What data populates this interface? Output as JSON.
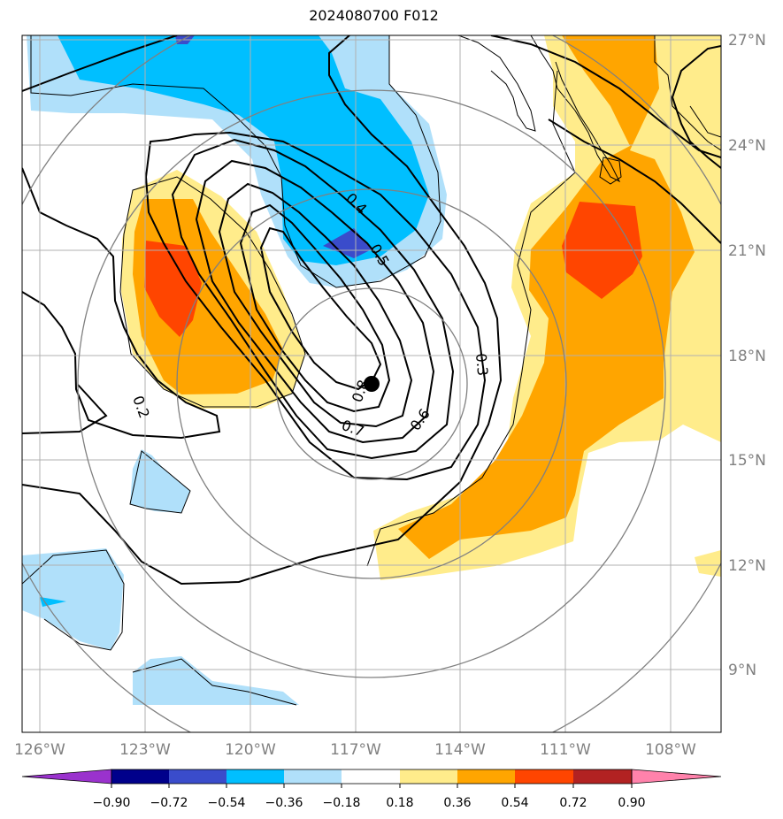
{
  "title": "2024080700 F012",
  "lon_ticks": [
    "126°W",
    "123°W",
    "120°W",
    "117°W",
    "114°W",
    "111°W",
    "108°W"
  ],
  "lat_ticks": [
    "27°N",
    "24°N",
    "21°N",
    "18°N",
    "15°N",
    "12°N",
    "9°N"
  ],
  "colorbar": {
    "tick_labels": [
      "−0.90",
      "−0.72",
      "−0.54",
      "−0.36",
      "−0.18",
      "0.18",
      "0.36",
      "0.54",
      "0.72",
      "0.90"
    ],
    "colors": [
      "#9a32cd",
      "#00008b",
      "#3a4ccb",
      "#00bfff",
      "#b0e0fa",
      "#ffffff",
      "#ffec8b",
      "#ffa500",
      "#ff4500",
      "#b22222",
      "#ff82ab"
    ]
  },
  "contour_labels": [
    "0.2",
    "0.3",
    "0.4",
    "0.5",
    "0.6",
    "0.7",
    "0.8"
  ],
  "colors": {
    "yellow": "#ffec8b",
    "orange": "#ffa500",
    "red": "#ff4500",
    "lightblue": "#b0e0fa",
    "blue": "#00bfff",
    "darkblue": "#3a4ccb",
    "grid": "#b0b0b0",
    "axis_text": "#808080"
  }
}
